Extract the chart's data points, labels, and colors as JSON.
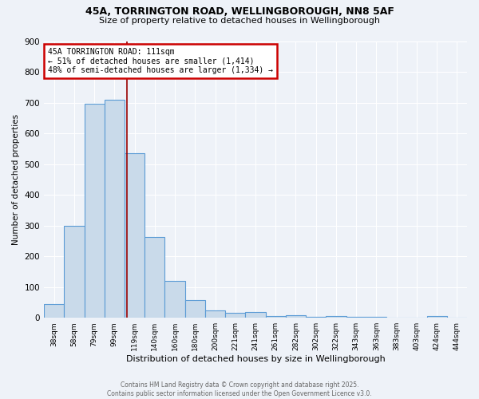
{
  "title_line1": "45A, TORRINGTON ROAD, WELLINGBOROUGH, NN8 5AF",
  "title_line2": "Size of property relative to detached houses in Wellingborough",
  "xlabel": "Distribution of detached houses by size in Wellingborough",
  "ylabel": "Number of detached properties",
  "categories": [
    "38sqm",
    "58sqm",
    "79sqm",
    "99sqm",
    "119sqm",
    "140sqm",
    "160sqm",
    "180sqm",
    "200sqm",
    "221sqm",
    "241sqm",
    "261sqm",
    "282sqm",
    "302sqm",
    "322sqm",
    "343sqm",
    "363sqm",
    "383sqm",
    "403sqm",
    "424sqm",
    "444sqm"
  ],
  "values": [
    45,
    300,
    695,
    710,
    535,
    263,
    120,
    57,
    25,
    15,
    18,
    5,
    8,
    3,
    7,
    3,
    2,
    0,
    0,
    7,
    0
  ],
  "bar_color": "#c9daea",
  "bar_edge_color": "#5b9bd5",
  "vline_color": "#990000",
  "annotation_text": "45A TORRINGTON ROAD: 111sqm\n← 51% of detached houses are smaller (1,414)\n48% of semi-detached houses are larger (1,334) →",
  "annotation_box_color": "#ffffff",
  "annotation_edge_color": "#cc0000",
  "background_color": "#eef2f8",
  "grid_color": "#ffffff",
  "footer_text": "Contains HM Land Registry data © Crown copyright and database right 2025.\nContains public sector information licensed under the Open Government Licence v3.0.",
  "ylim": [
    0,
    900
  ],
  "yticks": [
    0,
    100,
    200,
    300,
    400,
    500,
    600,
    700,
    800,
    900
  ],
  "vline_x": 3.6
}
